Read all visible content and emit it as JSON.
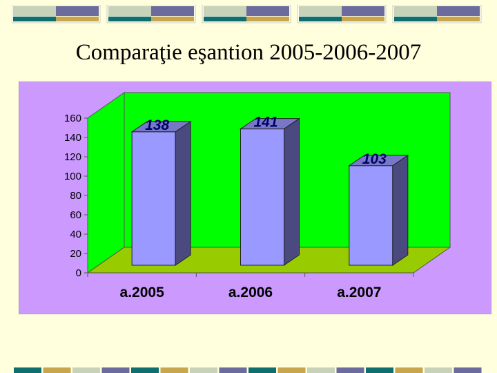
{
  "page": {
    "title": "Comparaţie eşantion 2005-2006-2007"
  },
  "colors": {
    "background": "#ffffdd",
    "plot_background": "#cc99ff",
    "back_wall": "#00ff00",
    "floor": "#99cc00",
    "bar_front": "#9999ff",
    "bar_side": "#4a4a80",
    "bar_top": "#7878c8",
    "deco_light": "#c8d2b8",
    "deco_blue": "#6b6b9e",
    "deco_teal": "#0f6e6e",
    "deco_gold": "#c8a64e"
  },
  "chart_data": {
    "type": "bar",
    "title": "",
    "categories": [
      "a.2005",
      "a.2006",
      "a.2007"
    ],
    "values": [
      138,
      141,
      103
    ],
    "data_labels": [
      "138",
      "141",
      "103"
    ],
    "ylim": [
      0,
      160
    ],
    "yticks": [
      "0",
      "20",
      "40",
      "60",
      "80",
      "100",
      "120",
      "140",
      "160"
    ],
    "xlabel": "",
    "ylabel": "",
    "grid": false,
    "legend": "none",
    "style": "3d"
  }
}
